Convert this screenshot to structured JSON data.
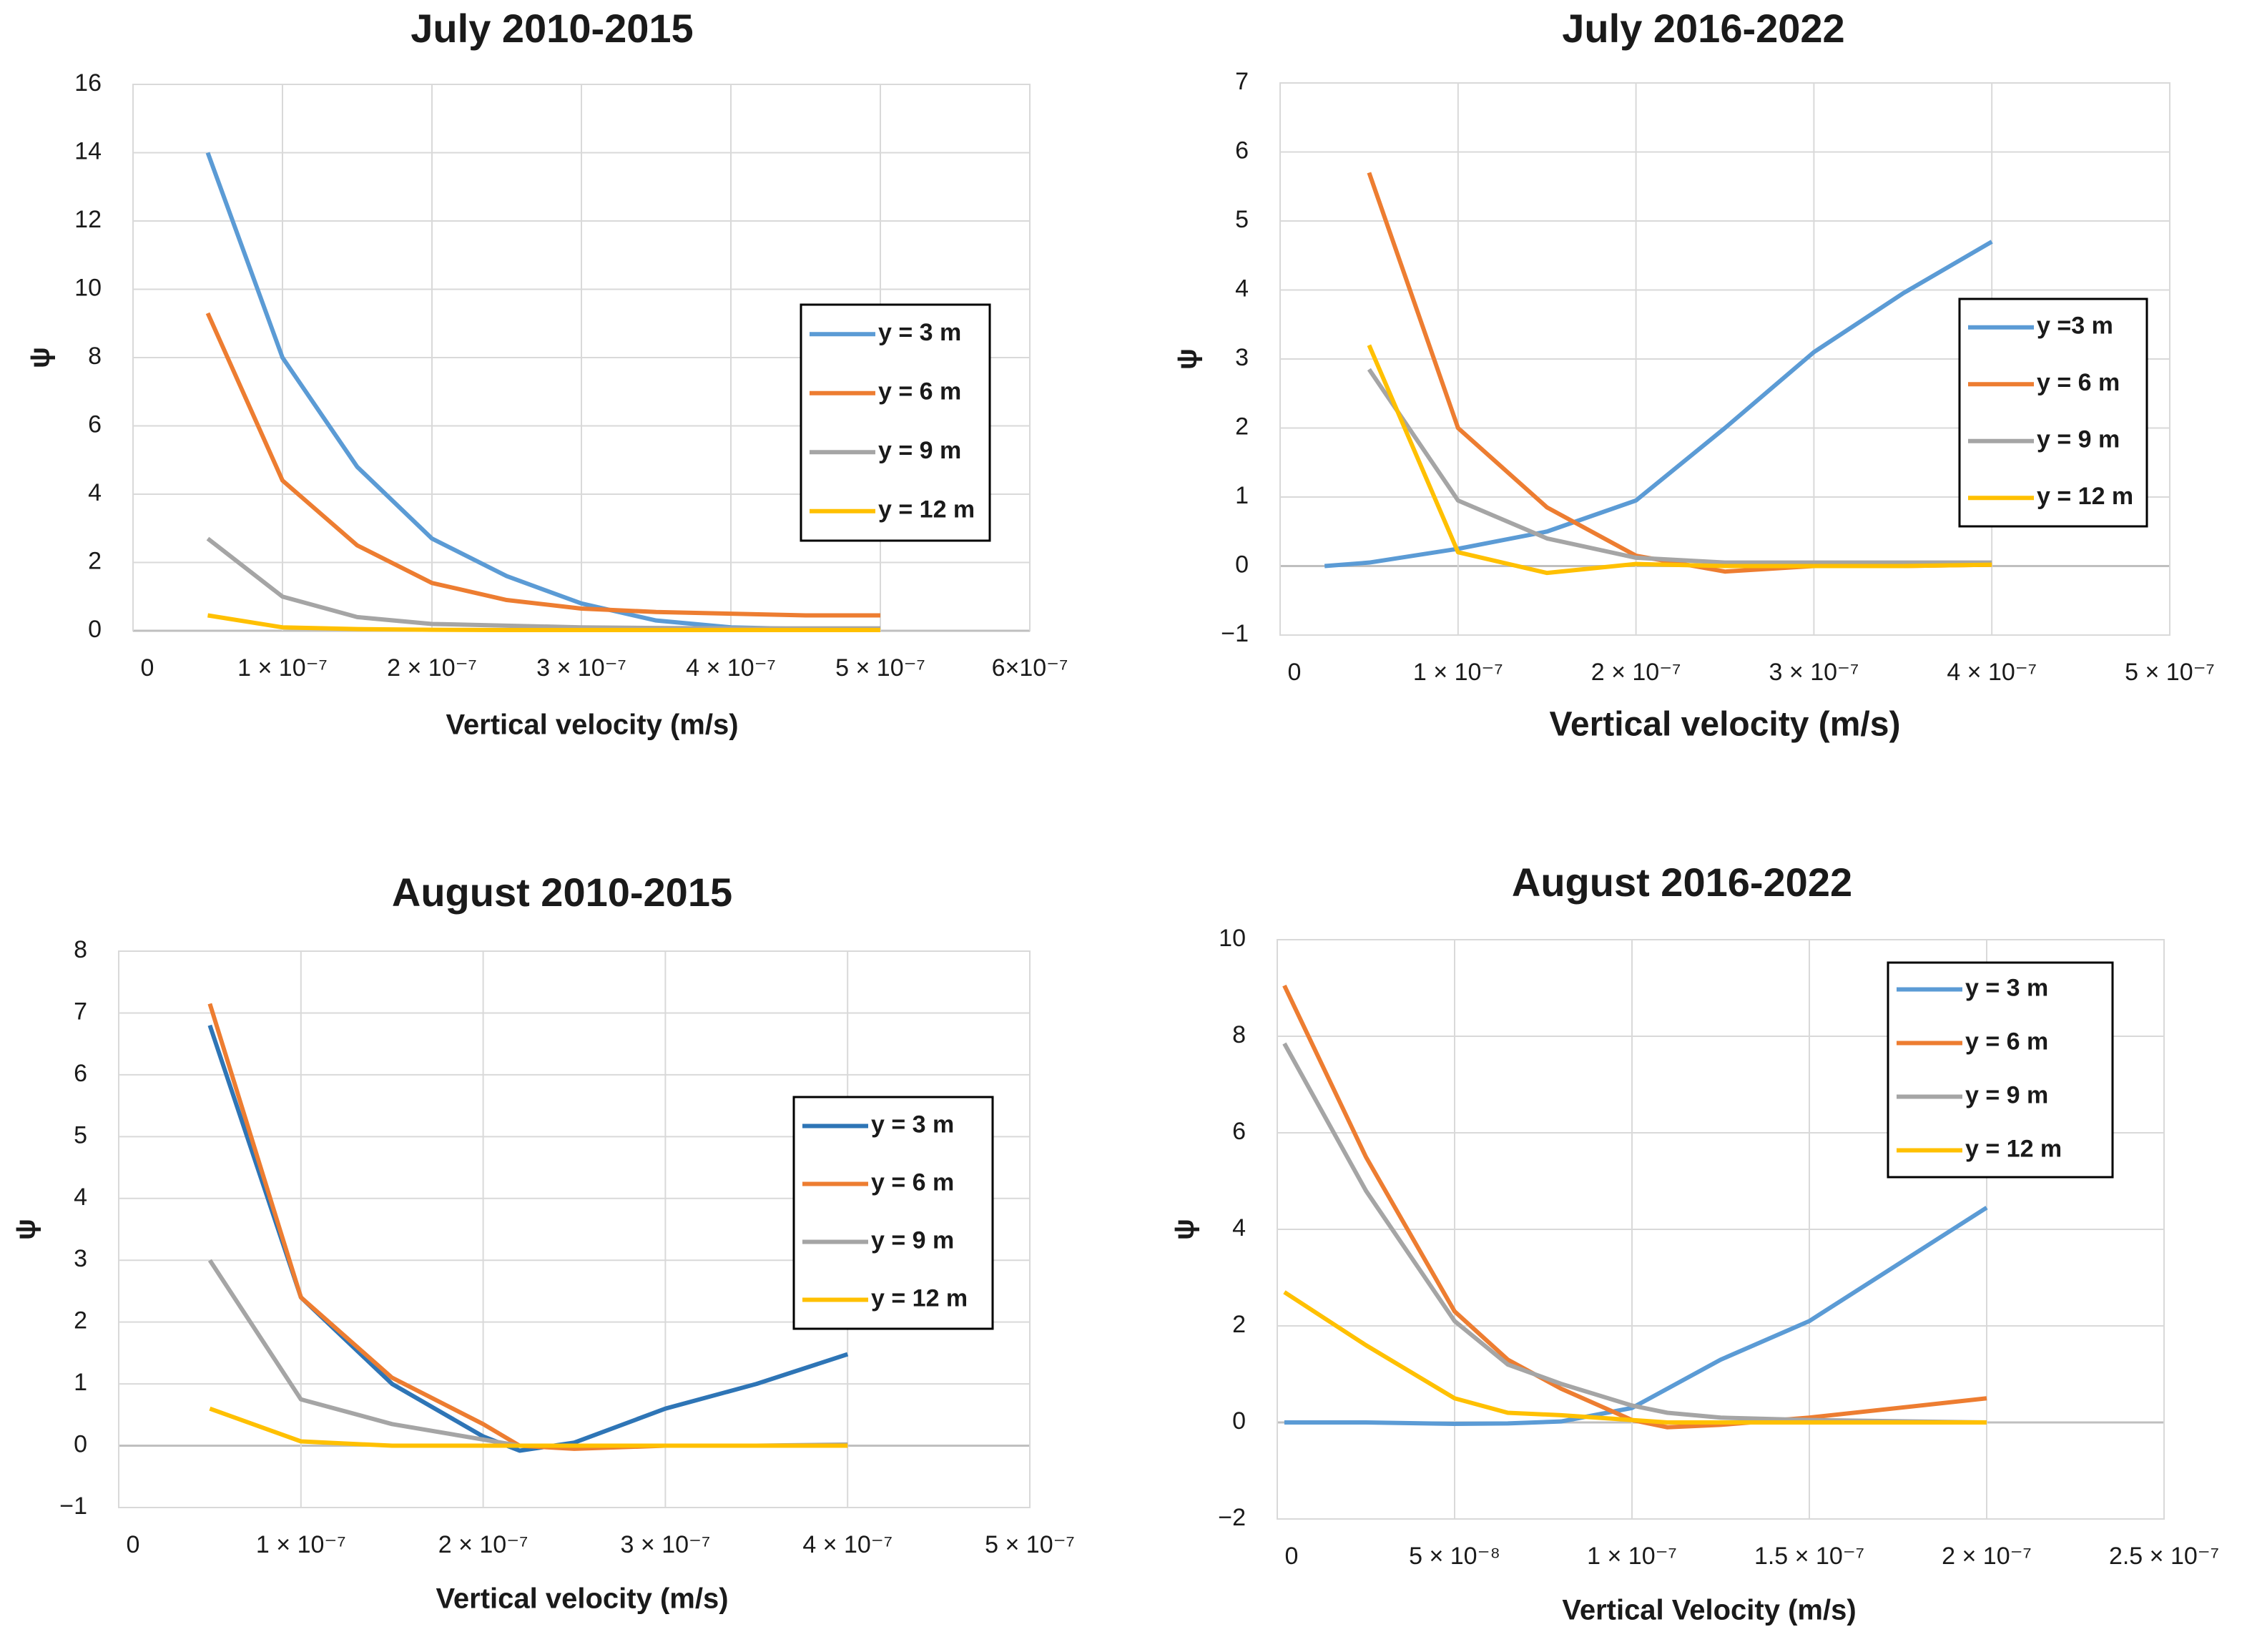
{
  "chart_data": [
    {
      "type": "line",
      "title": "July 2010-2015",
      "x_label": "Vertical velocity (m/s)",
      "y_label": "ψ",
      "x": [
        5e-08,
        1e-07,
        1.5e-07,
        2e-07,
        2.5e-07,
        3e-07,
        3.5e-07,
        4e-07,
        4.5e-07,
        5e-07
      ],
      "series": [
        {
          "name": "y = 3 m",
          "color": "#5b9bd5",
          "values": [
            14,
            8,
            4.8,
            2.7,
            1.6,
            0.8,
            0.3,
            0.1,
            0.05,
            0.05
          ]
        },
        {
          "name": "y = 6 m",
          "color": "#ed7d31",
          "values": [
            9.3,
            4.4,
            2.5,
            1.4,
            0.9,
            0.65,
            0.55,
            0.5,
            0.45,
            0.45
          ]
        },
        {
          "name": "y = 9 m",
          "color": "#a5a5a5",
          "values": [
            2.7,
            1.0,
            0.4,
            0.2,
            0.15,
            0.1,
            0.08,
            0.07,
            0.07,
            0.07
          ]
        },
        {
          "name": "y = 12 m",
          "color": "#ffc000",
          "values": [
            0.45,
            0.1,
            0.05,
            0.03,
            0.02,
            0.02,
            0.02,
            0.02,
            0.02,
            0.02
          ]
        }
      ],
      "xlim": [
        0,
        6e-07
      ],
      "ylim": [
        0,
        16
      ],
      "xticks": [
        0,
        {
          "value": 1e-07,
          "label": "1 × 10⁻⁷"
        },
        {
          "value": 2e-07,
          "label": "2 × 10⁻⁷"
        },
        {
          "value": 3e-07,
          "label": "3 × 10⁻⁷"
        },
        {
          "value": 4e-07,
          "label": "4 × 10⁻⁷"
        },
        {
          "value": 5e-07,
          "label": "5 × 10⁻⁷"
        },
        {
          "value": 6e-07,
          "label": "6×10⁻⁷"
        }
      ],
      "yticks": [
        0,
        2,
        4,
        6,
        8,
        10,
        12,
        14,
        16
      ],
      "grid": true
    },
    {
      "type": "line",
      "title": "July 2016-2022",
      "x_label": "Vertical velocity (m/s)",
      "y_label": "ψ",
      "x": [
        2.5e-08,
        5e-08,
        1e-07,
        1.5e-07,
        2e-07,
        2.5e-07,
        3e-07,
        3.5e-07,
        4e-07
      ],
      "series": [
        {
          "name": "y =3 m",
          "color": "#5b9bd5",
          "values": [
            0,
            0.05,
            0.25,
            0.5,
            0.95,
            2.0,
            3.1,
            3.95,
            4.7
          ]
        },
        {
          "name": "y = 6 m",
          "color": "#ed7d31",
          "values": [
            null,
            5.7,
            2.0,
            0.85,
            0.15,
            -0.08,
            0,
            0,
            0.02
          ]
        },
        {
          "name": "y = 9 m",
          "color": "#a5a5a5",
          "values": [
            null,
            2.85,
            0.95,
            0.4,
            0.12,
            0.05,
            0.05,
            0.05,
            0.05
          ]
        },
        {
          "name": "y = 12 m",
          "color": "#ffc000",
          "values": [
            null,
            3.2,
            0.2,
            -0.1,
            0.03,
            0,
            0,
            0,
            0.02
          ]
        }
      ],
      "xlim": [
        0,
        5e-07
      ],
      "ylim": [
        -1,
        7
      ],
      "xticks": [
        0,
        {
          "value": 1e-07,
          "label": "1 × 10⁻⁷"
        },
        {
          "value": 2e-07,
          "label": "2 × 10⁻⁷"
        },
        {
          "value": 3e-07,
          "label": "3 × 10⁻⁷"
        },
        {
          "value": 4e-07,
          "label": "4 × 10⁻⁷"
        },
        {
          "value": 5e-07,
          "label": "5 × 10⁻⁷"
        }
      ],
      "yticks": [
        {
          "value": -1,
          "label": "−1"
        },
        0,
        1,
        2,
        3,
        4,
        5,
        6,
        7
      ],
      "grid": true
    },
    {
      "type": "line",
      "title": "August 2010-2015",
      "x_label": "Vertical velocity (m/s)",
      "y_label": "ψ",
      "x": [
        5e-08,
        1e-07,
        1.5e-07,
        2e-07,
        2.2e-07,
        2.5e-07,
        3e-07,
        3.5e-07,
        4e-07
      ],
      "series": [
        {
          "name": "y = 3 m",
          "color": "#2e75b6",
          "values": [
            6.8,
            2.4,
            1.0,
            0.15,
            -0.08,
            0.05,
            0.6,
            1.0,
            1.48
          ]
        },
        {
          "name": "y = 6 m",
          "color": "#ed7d31",
          "values": [
            7.15,
            2.4,
            1.1,
            0.35,
            0,
            -0.05,
            0,
            0,
            0
          ]
        },
        {
          "name": "y = 9 m",
          "color": "#a5a5a5",
          "values": [
            3.0,
            0.75,
            0.35,
            0.1,
            0,
            0,
            0,
            0,
            0.02
          ]
        },
        {
          "name": "y = 12 m",
          "color": "#ffc000",
          "values": [
            0.6,
            0.07,
            0,
            0,
            0,
            0,
            0,
            0,
            0
          ]
        }
      ],
      "xlim": [
        0,
        5e-07
      ],
      "ylim": [
        -1,
        8
      ],
      "xticks": [
        0,
        {
          "value": 1e-07,
          "label": "1 × 10⁻⁷"
        },
        {
          "value": 2e-07,
          "label": "2 × 10⁻⁷"
        },
        {
          "value": 3e-07,
          "label": "3 × 10⁻⁷"
        },
        {
          "value": 4e-07,
          "label": "4 × 10⁻⁷"
        },
        {
          "value": 5e-07,
          "label": "5 × 10⁻⁷"
        }
      ],
      "yticks": [
        {
          "value": -1,
          "label": "−1"
        },
        0,
        1,
        2,
        3,
        4,
        5,
        6,
        7,
        8
      ],
      "grid": true
    },
    {
      "type": "line",
      "title": "August 2016-2022",
      "x_label": "Vertical Velocity (m/s)",
      "y_label": "ψ",
      "x": [
        2e-09,
        2.5e-08,
        5e-08,
        6.5e-08,
        8e-08,
        1e-07,
        1.1e-07,
        1.25e-07,
        1.5e-07,
        2e-07
      ],
      "series": [
        {
          "name": "y = 3 m",
          "color": "#5b9bd5",
          "values": [
            0,
            0,
            -0.03,
            -0.02,
            0.02,
            0.3,
            0.7,
            1.3,
            2.1,
            4.45
          ]
        },
        {
          "name": "y = 6 m",
          "color": "#ed7d31",
          "values": [
            9.05,
            5.5,
            2.3,
            1.3,
            0.7,
            0.05,
            -0.1,
            -0.05,
            0.1,
            0.5
          ]
        },
        {
          "name": "y = 9 m",
          "color": "#a5a5a5",
          "values": [
            7.85,
            4.8,
            2.1,
            1.2,
            0.8,
            0.35,
            0.2,
            0.1,
            0.05,
            0
          ]
        },
        {
          "name": "y = 12 m",
          "color": "#ffc000",
          "values": [
            2.7,
            1.6,
            0.5,
            0.2,
            0.15,
            0.05,
            0,
            0,
            0,
            0
          ]
        }
      ],
      "xlim": [
        0,
        2.5e-07
      ],
      "ylim": [
        -2,
        10
      ],
      "xticks": [
        0,
        {
          "value": 5e-08,
          "label": "5 × 10⁻⁸"
        },
        {
          "value": 1e-07,
          "label": "1 × 10⁻⁷"
        },
        {
          "value": 1.5e-07,
          "label": "1.5 × 10⁻⁷"
        },
        {
          "value": 2e-07,
          "label": "2 × 10⁻⁷"
        },
        {
          "value": 2.5e-07,
          "label": "2.5 × 10⁻⁷"
        }
      ],
      "yticks": [
        {
          "value": -2,
          "label": "−2"
        },
        0,
        2,
        4,
        6,
        8,
        10
      ],
      "grid": true
    }
  ]
}
